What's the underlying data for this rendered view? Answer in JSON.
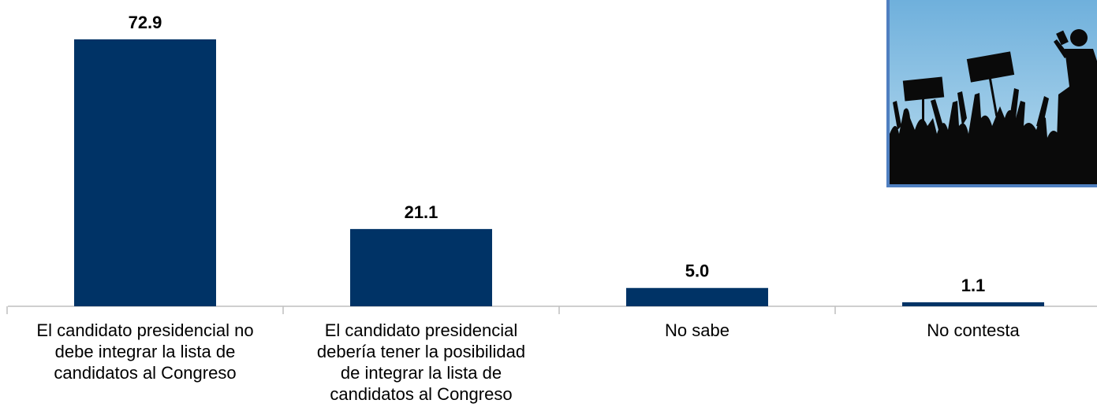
{
  "chart_data": {
    "type": "bar",
    "categories": [
      "El candidato presidencial no debe integrar la lista de candidatos al Congreso",
      "El candidato presidencial debería tener la posibilidad de integrar la lista de candidatos al Congreso",
      "No sabe",
      "No contesta"
    ],
    "category_lines": [
      [
        "El candidato presidencial no",
        "debe integrar la lista de",
        "candidatos al Congreso"
      ],
      [
        "El candidato presidencial",
        "debería tener la posibilidad",
        "de integrar la lista de",
        "candidatos al Congreso"
      ],
      [
        "No sabe"
      ],
      [
        "No contesta"
      ]
    ],
    "values": [
      72.9,
      21.1,
      5.0,
      1.1
    ],
    "value_labels": [
      "72.9",
      "21.1",
      "5.0",
      "1.1"
    ],
    "ylim": [
      0,
      80
    ],
    "bar_color": "#003366",
    "axis_color": "#bfbfbf",
    "grid": false,
    "legend": "none"
  },
  "decoration": {
    "icon": "protest-crowd-icon",
    "sky_color": "#8fc3e0",
    "border_color": "#4f7fc0"
  }
}
